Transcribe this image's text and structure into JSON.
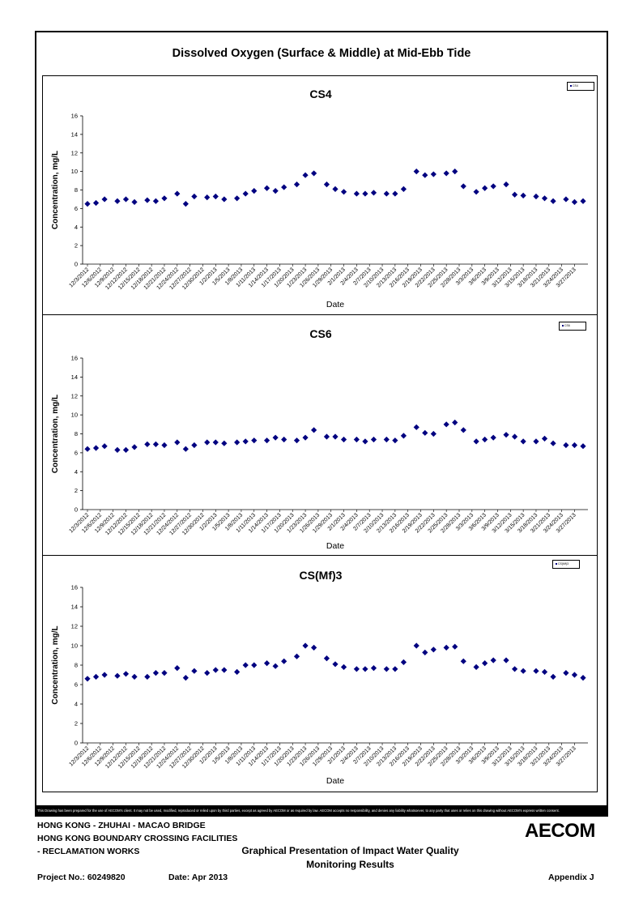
{
  "page": {
    "title": "Dissolved Oxygen (Surface & Middle) at Mid-Ebb Tide",
    "disclaimer": "This Drawing has been prepared for the use of AECOM's client. It may not be used, modified, reproduced or relied upon by third parties, except as agreed by AECOM or as required by law. AECOM accepts no responsibility, and denies any liability whatsoever, to any party that uses or relies on this drawing without AECOM's express written consent."
  },
  "footer": {
    "line1": "HONG KONG - ZHUHAI - MACAO BRIDGE",
    "line2": "HONG KONG BOUNDARY CROSSING FACILITIES",
    "line3": "- RECLAMATION WORKS",
    "doc_title_1": "Graphical Presentation of Impact Water Quality",
    "doc_title_2": "Monitoring Results",
    "project": "Project No.: 60249820",
    "date": "Date: Apr 2013",
    "appendix": "Appendix J",
    "logo": "AECOM"
  },
  "chart_data": [
    {
      "type": "scatter",
      "title": "CS4",
      "xlabel": "Date",
      "ylabel": "Concentration, mg/L",
      "ylim": [
        0,
        16
      ],
      "yticks": [
        0,
        2,
        4,
        6,
        8,
        10,
        12,
        14,
        16
      ],
      "grid": false,
      "legend_position": "top-right",
      "marker_color": "#000080",
      "series": [
        {
          "name": "CS4",
          "x": [
            "12/3/2012",
            "12/5/2012",
            "12/7/2012",
            "12/10/2012",
            "12/12/2012",
            "12/14/2012",
            "12/17/2012",
            "12/19/2012",
            "12/21/2012",
            "12/24/2012",
            "12/26/2012",
            "12/28/2012",
            "12/31/2012",
            "1/2/2013",
            "1/4/2013",
            "1/7/2013",
            "1/9/2013",
            "1/11/2013",
            "1/14/2013",
            "1/16/2013",
            "1/18/2013",
            "1/21/2013",
            "1/23/2013",
            "1/25/2013",
            "1/28/2013",
            "1/30/2013",
            "2/1/2013",
            "2/4/2013",
            "2/6/2013",
            "2/8/2013",
            "2/11/2013",
            "2/13/2013",
            "2/15/2013",
            "2/18/2013",
            "2/20/2013",
            "2/22/2013",
            "2/25/2013",
            "2/27/2013",
            "3/1/2013",
            "3/4/2013",
            "3/6/2013",
            "3/8/2013",
            "3/11/2013",
            "3/13/2013",
            "3/15/2013",
            "3/18/2013",
            "3/20/2013",
            "3/22/2013",
            "3/25/2013",
            "3/27/2013",
            "3/29/2013"
          ],
          "y": [
            6.5,
            6.6,
            7.0,
            6.8,
            7.0,
            6.7,
            6.9,
            6.8,
            7.1,
            7.6,
            6.5,
            7.3,
            7.2,
            7.3,
            7.0,
            7.1,
            7.6,
            7.9,
            8.2,
            7.9,
            8.3,
            8.6,
            9.6,
            9.8,
            8.6,
            8.1,
            7.8,
            7.6,
            7.6,
            7.7,
            7.6,
            7.6,
            8.1,
            10.0,
            9.6,
            9.7,
            9.8,
            10.0,
            8.4,
            7.8,
            8.2,
            8.4,
            8.6,
            7.5,
            7.4,
            7.3,
            7.1,
            6.8,
            7.0,
            6.7,
            6.8
          ]
        }
      ]
    },
    {
      "type": "scatter",
      "title": "CS6",
      "xlabel": "Date",
      "ylabel": "Concentration, mg/L",
      "ylim": [
        0,
        16
      ],
      "yticks": [
        0,
        2,
        4,
        6,
        8,
        10,
        12,
        14,
        16
      ],
      "grid": false,
      "legend_position": "top-right",
      "marker_color": "#000080",
      "series": [
        {
          "name": "CS6",
          "x": [
            "12/3/2012",
            "12/5/2012",
            "12/7/2012",
            "12/10/2012",
            "12/12/2012",
            "12/14/2012",
            "12/17/2012",
            "12/19/2012",
            "12/21/2012",
            "12/24/2012",
            "12/26/2012",
            "12/28/2012",
            "12/31/2012",
            "1/2/2013",
            "1/4/2013",
            "1/7/2013",
            "1/9/2013",
            "1/11/2013",
            "1/14/2013",
            "1/16/2013",
            "1/18/2013",
            "1/21/2013",
            "1/23/2013",
            "1/25/2013",
            "1/28/2013",
            "1/30/2013",
            "2/1/2013",
            "2/4/2013",
            "2/6/2013",
            "2/8/2013",
            "2/11/2013",
            "2/13/2013",
            "2/15/2013",
            "2/18/2013",
            "2/20/2013",
            "2/22/2013",
            "2/25/2013",
            "2/27/2013",
            "3/1/2013",
            "3/4/2013",
            "3/6/2013",
            "3/8/2013",
            "3/11/2013",
            "3/13/2013",
            "3/15/2013",
            "3/18/2013",
            "3/20/2013",
            "3/22/2013",
            "3/25/2013",
            "3/27/2013",
            "3/29/2013"
          ],
          "y": [
            6.4,
            6.5,
            6.7,
            6.3,
            6.3,
            6.6,
            6.9,
            6.9,
            6.8,
            7.1,
            6.4,
            6.8,
            7.1,
            7.1,
            7.0,
            7.1,
            7.2,
            7.3,
            7.3,
            7.6,
            7.4,
            7.3,
            7.6,
            8.4,
            7.7,
            7.7,
            7.4,
            7.4,
            7.2,
            7.4,
            7.4,
            7.3,
            7.8,
            8.7,
            8.1,
            8.0,
            9.0,
            9.2,
            8.4,
            7.2,
            7.4,
            7.6,
            7.9,
            7.7,
            7.2,
            7.2,
            7.5,
            7.0,
            6.8,
            6.8,
            6.7
          ]
        }
      ]
    },
    {
      "type": "scatter",
      "title": "CS(Mf)3",
      "xlabel": "Date",
      "ylabel": "Concentration, mg/L",
      "ylim": [
        0,
        16
      ],
      "yticks": [
        0,
        2,
        4,
        6,
        8,
        10,
        12,
        14,
        16
      ],
      "grid": false,
      "legend_position": "top-right",
      "marker_color": "#000080",
      "series": [
        {
          "name": "CS(Mf)3",
          "x": [
            "12/3/2012",
            "12/5/2012",
            "12/7/2012",
            "12/10/2012",
            "12/12/2012",
            "12/14/2012",
            "12/17/2012",
            "12/19/2012",
            "12/21/2012",
            "12/24/2012",
            "12/26/2012",
            "12/28/2012",
            "12/31/2012",
            "1/2/2013",
            "1/4/2013",
            "1/7/2013",
            "1/9/2013",
            "1/11/2013",
            "1/14/2013",
            "1/16/2013",
            "1/18/2013",
            "1/21/2013",
            "1/23/2013",
            "1/25/2013",
            "1/28/2013",
            "1/30/2013",
            "2/1/2013",
            "2/4/2013",
            "2/6/2013",
            "2/8/2013",
            "2/11/2013",
            "2/13/2013",
            "2/15/2013",
            "2/18/2013",
            "2/20/2013",
            "2/22/2013",
            "2/25/2013",
            "2/27/2013",
            "3/1/2013",
            "3/4/2013",
            "3/6/2013",
            "3/8/2013",
            "3/11/2013",
            "3/13/2013",
            "3/15/2013",
            "3/18/2013",
            "3/20/2013",
            "3/22/2013",
            "3/25/2013",
            "3/27/2013",
            "3/29/2013"
          ],
          "y": [
            6.6,
            6.8,
            7.0,
            6.9,
            7.1,
            6.8,
            6.8,
            7.2,
            7.2,
            7.7,
            6.7,
            7.4,
            7.2,
            7.5,
            7.5,
            7.3,
            8.0,
            8.0,
            8.2,
            7.9,
            8.4,
            8.9,
            10.0,
            9.8,
            8.7,
            8.1,
            7.8,
            7.6,
            7.6,
            7.7,
            7.6,
            7.6,
            8.3,
            10.0,
            9.3,
            9.6,
            9.8,
            9.9,
            8.4,
            7.8,
            8.2,
            8.5,
            8.5,
            7.6,
            7.4,
            7.4,
            7.3,
            6.8,
            7.2,
            7.0,
            6.7
          ]
        }
      ]
    }
  ],
  "x_tick_labels": [
    "12/3/2012",
    "12/6/2012",
    "12/9/2012",
    "12/12/2012",
    "12/15/2012",
    "12/18/2012",
    "12/21/2012",
    "12/24/2012",
    "12/27/2012",
    "12/30/2012",
    "1/2/2013",
    "1/5/2013",
    "1/8/2013",
    "1/11/2013",
    "1/14/2013",
    "1/17/2013",
    "1/20/2013",
    "1/23/2013",
    "1/26/2013",
    "1/29/2013",
    "2/1/2013",
    "2/4/2013",
    "2/7/2013",
    "2/10/2013",
    "2/13/2013",
    "2/16/2013",
    "2/19/2013",
    "2/22/2013",
    "2/25/2013",
    "2/28/2013",
    "3/3/2013",
    "3/6/2013",
    "3/9/2013",
    "3/12/2013",
    "3/15/2013",
    "3/18/2013",
    "3/21/2013",
    "3/24/2013",
    "3/27/2013"
  ]
}
